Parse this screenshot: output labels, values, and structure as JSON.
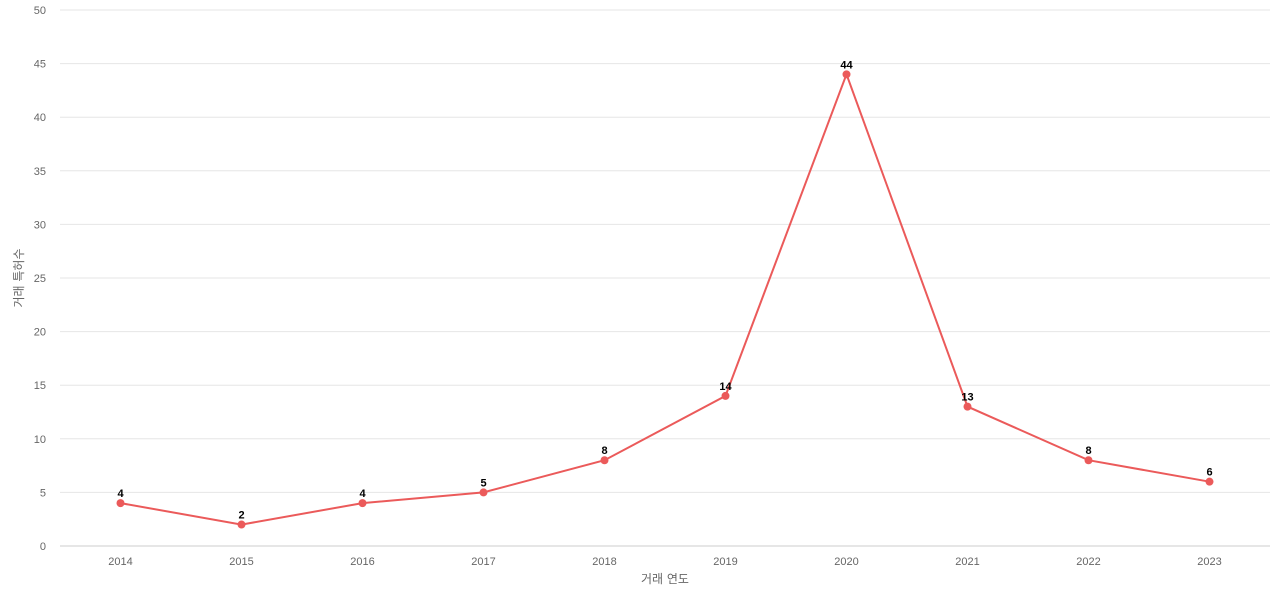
{
  "chart_data": {
    "type": "line",
    "title": "",
    "xlabel": "거래 연도",
    "ylabel": "거래 특허수",
    "categories": [
      "2014",
      "2015",
      "2016",
      "2017",
      "2018",
      "2019",
      "2020",
      "2021",
      "2022",
      "2023"
    ],
    "series": [
      {
        "values": [
          4,
          2,
          4,
          5,
          8,
          14,
          44,
          13,
          8,
          6
        ],
        "color": "#eb5a5a"
      }
    ],
    "ylim": [
      0,
      50
    ],
    "yticks": [
      0,
      5,
      10,
      15,
      20,
      25,
      30,
      35,
      40,
      45,
      50
    ],
    "grid": true,
    "data_labels": true
  }
}
